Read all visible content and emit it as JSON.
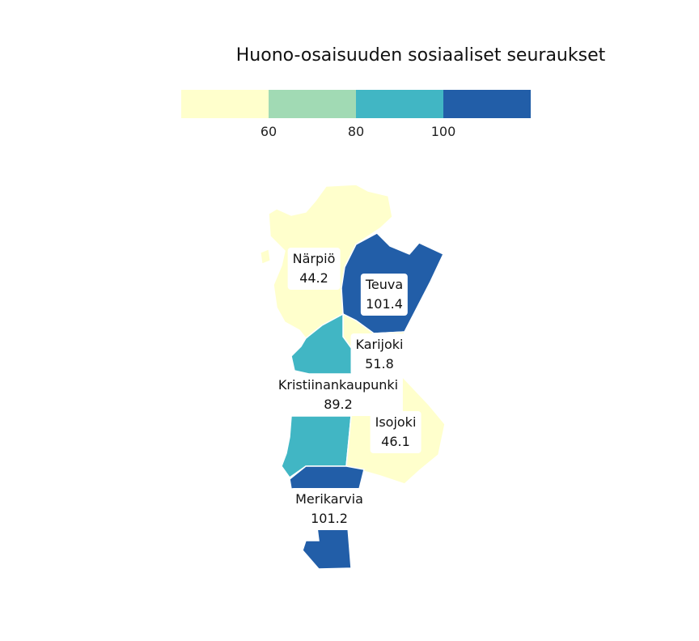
{
  "title": "Huono-osaisuuden sosiaaliset seuraukset",
  "legend": {
    "bins": [
      {
        "color": "#ffffcc"
      },
      {
        "color": "#a1dab4"
      },
      {
        "color": "#41b6c4"
      },
      {
        "color": "#225ea8"
      }
    ],
    "ticks": [
      "60",
      "80",
      "100"
    ]
  },
  "regions": [
    {
      "name": "Närpiö",
      "value": "44.2",
      "color": "#ffffcc"
    },
    {
      "name": "Teuva",
      "value": "101.4",
      "color": "#225ea8"
    },
    {
      "name": "Karijoki",
      "value": "51.8",
      "color": "#ffffcc"
    },
    {
      "name": "Kristiinankaupunki",
      "value": "89.2",
      "color": "#41b6c4"
    },
    {
      "name": "Isojoki",
      "value": "46.1",
      "color": "#ffffcc"
    },
    {
      "name": "Merikarvia",
      "value": "101.2",
      "color": "#225ea8"
    }
  ]
}
